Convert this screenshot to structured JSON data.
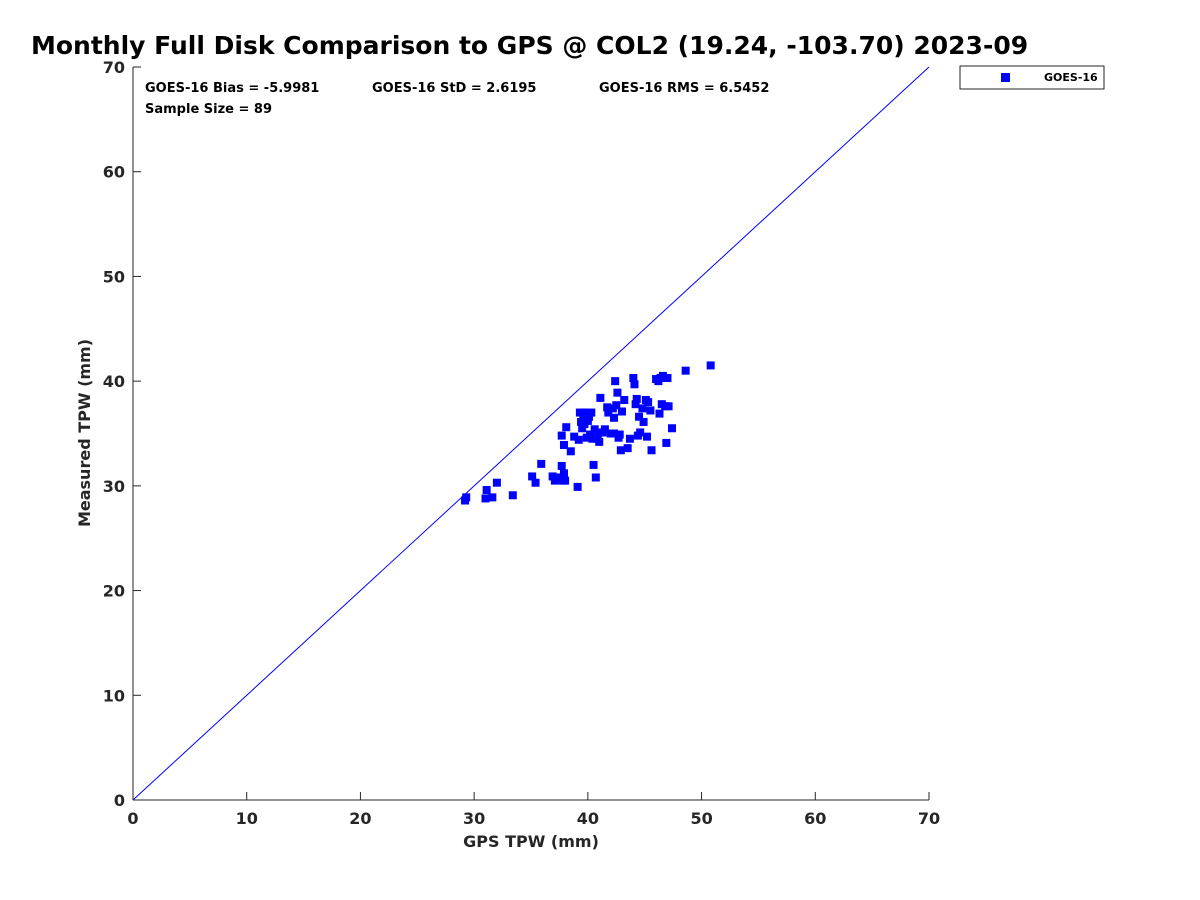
{
  "chart_data": {
    "type": "scatter",
    "title": "Monthly Full Disk Comparison to GPS @ COL2 (19.24, -103.70) 2023-09",
    "xlabel": "GPS TPW (mm)",
    "ylabel": "Measured TPW (mm)",
    "xlim": [
      0,
      70
    ],
    "ylim": [
      0,
      70
    ],
    "xticks": [
      "0",
      "10",
      "20",
      "30",
      "40",
      "50",
      "60",
      "70"
    ],
    "yticks": [
      "0",
      "10",
      "20",
      "30",
      "40",
      "50",
      "60",
      "70"
    ],
    "grid": false,
    "legend_position": "outside-top-right",
    "reference_line": {
      "x": [
        0,
        70
      ],
      "y": [
        0,
        70
      ],
      "color": "#0000ff"
    },
    "stats": {
      "bias": "GOES-16 Bias = -5.9981",
      "std": "GOES-16 StD = 2.6195",
      "rms": "GOES-16 RMS = 6.5452",
      "sample": "Sample Size = 89"
    },
    "series": [
      {
        "name": "GOES-16",
        "color": "#0000ff",
        "marker": "square",
        "points": [
          [
            29.2,
            28.6
          ],
          [
            29.3,
            28.9
          ],
          [
            31.0,
            28.8
          ],
          [
            31.1,
            29.6
          ],
          [
            31.6,
            28.9
          ],
          [
            32.0,
            30.3
          ],
          [
            33.4,
            29.1
          ],
          [
            35.1,
            30.9
          ],
          [
            35.4,
            30.3
          ],
          [
            35.9,
            32.1
          ],
          [
            36.9,
            30.9
          ],
          [
            37.1,
            30.5
          ],
          [
            37.6,
            30.8
          ],
          [
            37.7,
            31.9
          ],
          [
            37.8,
            30.5
          ],
          [
            37.9,
            31.2
          ],
          [
            38.0,
            30.5
          ],
          [
            37.7,
            34.8
          ],
          [
            37.9,
            33.9
          ],
          [
            38.1,
            35.6
          ],
          [
            38.5,
            33.3
          ],
          [
            38.8,
            34.7
          ],
          [
            39.1,
            29.9
          ],
          [
            39.2,
            34.4
          ],
          [
            39.3,
            37.0
          ],
          [
            39.4,
            36.1
          ],
          [
            39.5,
            35.5
          ],
          [
            39.6,
            36.4
          ],
          [
            39.7,
            35.9
          ],
          [
            39.8,
            37.0
          ],
          [
            39.9,
            34.6
          ],
          [
            40.0,
            36.2
          ],
          [
            40.1,
            36.6
          ],
          [
            40.2,
            34.9
          ],
          [
            40.3,
            37.0
          ],
          [
            40.4,
            34.5
          ],
          [
            40.5,
            32.0
          ],
          [
            40.6,
            35.4
          ],
          [
            40.7,
            30.8
          ],
          [
            40.8,
            34.5
          ],
          [
            40.9,
            35.0
          ],
          [
            41.0,
            34.2
          ],
          [
            41.1,
            38.4
          ],
          [
            41.3,
            35.1
          ],
          [
            41.5,
            35.4
          ],
          [
            41.7,
            37.5
          ],
          [
            41.8,
            37.0
          ],
          [
            42.0,
            35.0
          ],
          [
            42.2,
            37.4
          ],
          [
            42.3,
            36.5
          ],
          [
            42.4,
            40.0
          ],
          [
            42.5,
            37.7
          ],
          [
            42.6,
            38.9
          ],
          [
            42.7,
            34.6
          ],
          [
            42.8,
            34.9
          ],
          [
            42.9,
            33.4
          ],
          [
            43.0,
            37.1
          ],
          [
            43.2,
            38.2
          ],
          [
            43.5,
            33.6
          ],
          [
            43.7,
            34.5
          ],
          [
            44.0,
            40.3
          ],
          [
            44.1,
            39.7
          ],
          [
            44.2,
            37.8
          ],
          [
            44.3,
            38.3
          ],
          [
            44.4,
            34.8
          ],
          [
            44.5,
            36.6
          ],
          [
            44.6,
            35.1
          ],
          [
            44.8,
            37.4
          ],
          [
            44.9,
            36.1
          ],
          [
            45.1,
            38.2
          ],
          [
            45.2,
            34.7
          ],
          [
            45.3,
            38.0
          ],
          [
            45.5,
            37.2
          ],
          [
            45.6,
            33.4
          ],
          [
            46.0,
            40.2
          ],
          [
            46.2,
            40.0
          ],
          [
            46.3,
            36.9
          ],
          [
            46.4,
            40.3
          ],
          [
            46.5,
            37.8
          ],
          [
            46.6,
            40.5
          ],
          [
            46.8,
            37.6
          ],
          [
            46.9,
            34.1
          ],
          [
            47.0,
            40.3
          ],
          [
            47.1,
            37.6
          ],
          [
            47.4,
            35.5
          ],
          [
            48.6,
            41.0
          ],
          [
            50.8,
            41.5
          ],
          [
            42.3,
            35.0
          ],
          [
            39.6,
            37.0
          ]
        ]
      }
    ]
  }
}
